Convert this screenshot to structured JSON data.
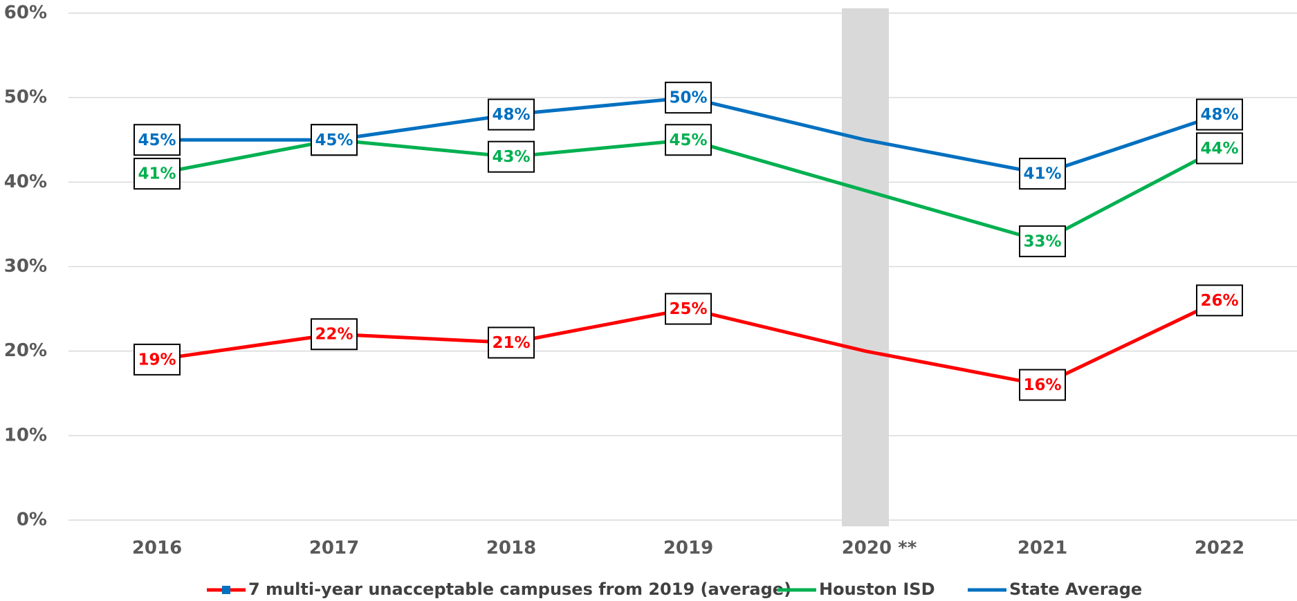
{
  "chart_data": {
    "type": "line",
    "categories": [
      "2016",
      "2017",
      "2018",
      "2019",
      "2020 **",
      "2021",
      "2022"
    ],
    "series": [
      {
        "name": "7 multi-year unacceptable campuses from 2019 (average)",
        "color": "#ff0000",
        "marker_color": "#0070c0",
        "values": [
          19,
          22,
          21,
          25,
          20,
          16,
          26
        ],
        "value_labels": [
          "19%",
          "22%",
          "21%",
          "25%",
          null,
          "16%",
          "26%"
        ]
      },
      {
        "name": "Houston ISD",
        "color": "#00b050",
        "values": [
          41,
          45,
          43,
          45,
          39,
          33,
          44
        ],
        "value_labels": [
          "41%",
          "45%",
          "43%",
          "45%",
          null,
          "33%",
          "44%"
        ]
      },
      {
        "name": "State Average",
        "color": "#0070c0",
        "values": [
          45,
          45,
          48,
          50,
          45,
          41,
          48
        ],
        "value_labels": [
          "45%",
          "45%",
          "48%",
          "50%",
          null,
          "41%",
          "48%"
        ]
      }
    ],
    "ylim": [
      0,
      60
    ],
    "yticks": [
      {
        "value": 0,
        "label": "0%"
      },
      {
        "value": 10,
        "label": "10%"
      },
      {
        "value": 20,
        "label": "20%"
      },
      {
        "value": 30,
        "label": "30%"
      },
      {
        "value": 40,
        "label": "40%"
      },
      {
        "value": 50,
        "label": "50%"
      },
      {
        "value": 60,
        "label": "60%"
      }
    ],
    "grid": true,
    "legend": "bottom",
    "shaded_category": 4
  }
}
